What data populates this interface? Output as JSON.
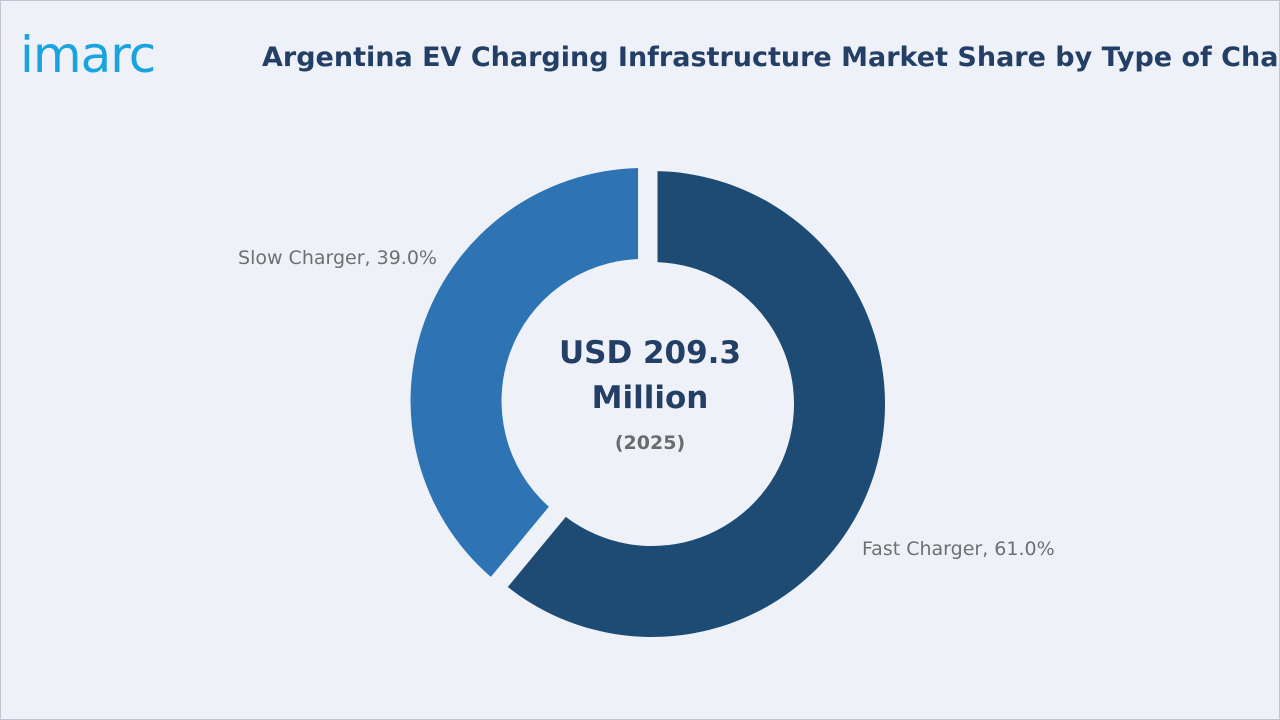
{
  "brand": {
    "logo_text": "imarc",
    "logo_color": "#1ba3df"
  },
  "chart_data": {
    "type": "pie",
    "variant": "donut",
    "title": "Argentina EV Charging Infrastructure Market Share by Type of Charger",
    "center_text": {
      "value_line1": "USD 209.3",
      "value_line2": "Million",
      "year": "(2025)"
    },
    "slices": [
      {
        "label": "Fast Charger, 61.0%",
        "name": "Fast Charger",
        "value": 61.0,
        "color": "#1e4b74",
        "exploded": false
      },
      {
        "label": "Slow Charger, 39.0%",
        "name": "Slow Charger",
        "value": 39.0,
        "color": "#2e74b5",
        "exploded": true
      }
    ],
    "legend": "none"
  },
  "colors": {
    "background": "#eef2f8",
    "title": "#243f66",
    "label_text": "#6f6f6f"
  }
}
